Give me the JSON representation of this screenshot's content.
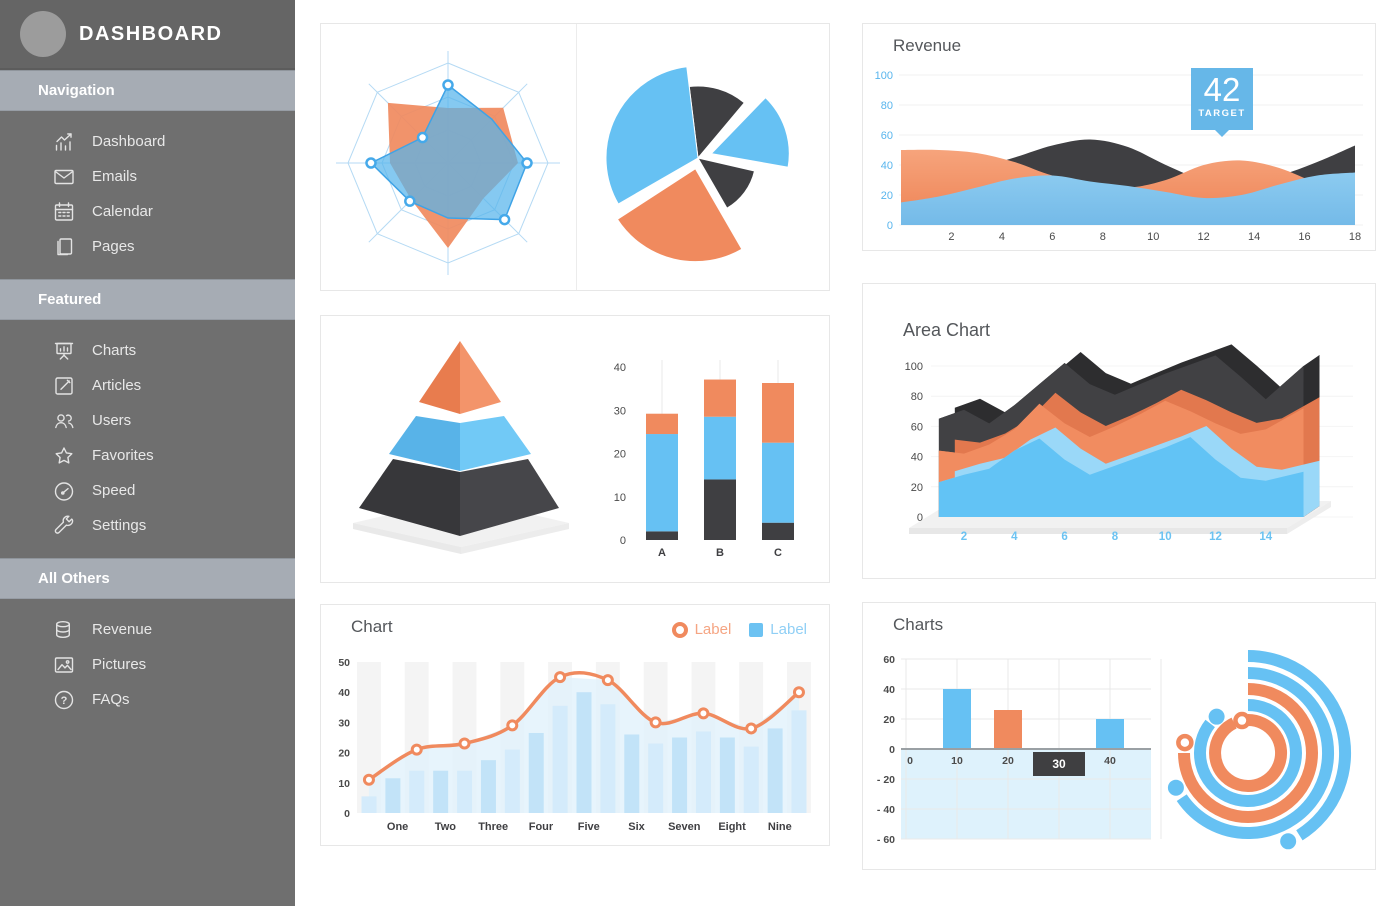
{
  "sidebar": {
    "title": "DASHBOARD",
    "sections": [
      {
        "label": "Navigation",
        "items": [
          {
            "label": "Dashboard",
            "icon": "bar-chart-icon"
          },
          {
            "label": "Emails",
            "icon": "envelope-icon"
          },
          {
            "label": "Calendar",
            "icon": "calendar-icon"
          },
          {
            "label": "Pages",
            "icon": "pages-icon"
          }
        ]
      },
      {
        "label": "Featured",
        "items": [
          {
            "label": "Charts",
            "icon": "presentation-chart-icon"
          },
          {
            "label": "Articles",
            "icon": "edit-icon"
          },
          {
            "label": "Users",
            "icon": "users-icon"
          },
          {
            "label": "Favorites",
            "icon": "star-icon"
          },
          {
            "label": "Speed",
            "icon": "gauge-icon"
          },
          {
            "label": "Settings",
            "icon": "wrench-icon"
          }
        ]
      },
      {
        "label": "All Others",
        "items": [
          {
            "label": "Revenue",
            "icon": "coins-icon"
          },
          {
            "label": "Pictures",
            "icon": "picture-icon"
          },
          {
            "label": "FAQs",
            "icon": "question-circle-icon"
          }
        ]
      }
    ]
  },
  "palette": {
    "blue": "#66c1f3",
    "blue_muted": "#7cc0ea",
    "orange": "#f08a5e",
    "orange_light": "#f6a47c",
    "dark": "#3f3f42",
    "dark_roof": "#2d2d2f",
    "blue_roof": "#9ad8f8",
    "orange_roof": "#e2784e",
    "bar_light_blue_a": "#d4ebfb",
    "bar_light_blue_b": "#c2e3f8",
    "stripe": "#f4f4f4",
    "negative_region": "#def2fc",
    "grid": "#efefef",
    "axis_text": "#4b4b4b",
    "blue_text": "#58b5ed",
    "badge_blue": "#66b7e8"
  },
  "panels": {
    "revenue": {
      "title": "Revenue",
      "target_value": "42",
      "target_label": "TARGET"
    },
    "area": {
      "title": "Area Chart"
    },
    "combo": {
      "title": "Chart",
      "legend": [
        {
          "label": "Label",
          "color": "orange",
          "shape": "ring"
        },
        {
          "label": "Label",
          "color": "blue",
          "shape": "square"
        }
      ]
    },
    "charts": {
      "title": "Charts"
    }
  },
  "chart_data": [
    {
      "id": "radar",
      "type": "radar",
      "axes": 8,
      "rings": 3,
      "max": 100,
      "series": [
        {
          "name": "orange",
          "color": "orange",
          "values": [
            55,
            78,
            70,
            50,
            85,
            52,
            58,
            85
          ]
        },
        {
          "name": "blue",
          "color": "blue",
          "values": [
            78,
            62,
            79,
            80,
            55,
            54,
            77,
            36
          ],
          "markers": [
            0,
            2,
            3,
            5,
            6,
            7
          ]
        }
      ]
    },
    {
      "id": "pie",
      "type": "pie",
      "slices": [
        {
          "color": "dark",
          "start": -7,
          "end": 40,
          "r": 72,
          "explode": 0
        },
        {
          "color": "blue",
          "start": 44,
          "end": 100,
          "r": 78,
          "explode": 14
        },
        {
          "color": "dark",
          "start": 103,
          "end": 150,
          "r": 58,
          "explode": 0
        },
        {
          "color": "orange",
          "start": 150,
          "end": 237,
          "r": 93,
          "explode": 11
        },
        {
          "color": "blue",
          "start": 240,
          "end": 353,
          "r": 92,
          "explode": 0
        }
      ]
    },
    {
      "id": "revenue",
      "type": "area",
      "x": [
        0,
        1.5,
        3,
        4.5,
        6,
        7.5,
        9,
        10.5,
        12,
        13.5,
        15,
        16.5,
        18
      ],
      "series": [
        {
          "name": "dark",
          "color": "dark",
          "values": [
            30,
            33,
            38,
            45,
            53,
            57,
            52,
            40,
            30,
            28,
            33,
            42,
            53
          ]
        },
        {
          "name": "orange",
          "color": "orange",
          "values": [
            50,
            50,
            48,
            42,
            33,
            28,
            25,
            30,
            40,
            43,
            38,
            28,
            22
          ]
        },
        {
          "name": "blue",
          "color": "blue_muted",
          "values": [
            15,
            19,
            25,
            31,
            33,
            29,
            26,
            22,
            18,
            20,
            27,
            33,
            35
          ]
        }
      ],
      "yticks": [
        0,
        20,
        40,
        60,
        80,
        100
      ],
      "xticks": [
        2,
        4,
        6,
        8,
        10,
        12,
        14,
        16,
        18
      ],
      "target": 42
    },
    {
      "id": "pyramid",
      "type": "pyramid",
      "tiers": [
        {
          "name": "top",
          "color": "orange"
        },
        {
          "name": "middle",
          "color": "blue"
        },
        {
          "name": "bottom",
          "color": "dark"
        }
      ]
    },
    {
      "id": "stacked-bars",
      "type": "bar",
      "stacked": true,
      "categories": [
        "A",
        "B",
        "C"
      ],
      "series": [
        {
          "name": "dark",
          "color": "dark",
          "values": [
            2,
            14,
            4
          ]
        },
        {
          "name": "blue",
          "color": "blue",
          "values": [
            22.5,
            14.5,
            18.5
          ]
        },
        {
          "name": "orange",
          "color": "orange",
          "values": [
            4.7,
            8.6,
            13.8
          ]
        }
      ],
      "yticks": [
        0,
        10,
        20,
        30,
        40
      ]
    },
    {
      "id": "combo",
      "type": "bar+line",
      "categories": [
        "One",
        "Two",
        "Three",
        "Four",
        "Five",
        "Six",
        "Seven",
        "Eight",
        "Nine"
      ],
      "bar_values": [
        5.5,
        11.5,
        14,
        14,
        14,
        17.5,
        21,
        26.5,
        35.5,
        40,
        36,
        26,
        23,
        25,
        27,
        25,
        22,
        28,
        34
      ],
      "line": {
        "slots": [
          0,
          2,
          4,
          6,
          8,
          10,
          12,
          14,
          16,
          18
        ],
        "values": [
          11,
          21,
          23,
          29,
          45,
          44,
          30,
          33,
          28,
          40
        ]
      },
      "yticks": [
        0,
        10,
        20,
        30,
        40,
        50
      ]
    },
    {
      "id": "pm-bars",
      "type": "bar",
      "bars": [
        {
          "x": 10,
          "value": 40,
          "color": "blue"
        },
        {
          "x": 20,
          "value": 26,
          "color": "orange"
        },
        {
          "x": 40,
          "value": 20,
          "color": "blue"
        }
      ],
      "xticks": [
        "0",
        "10",
        "20",
        "30",
        "40"
      ],
      "xtick_values": [
        0,
        10,
        20,
        30,
        40
      ],
      "highlighted_xtick": "30",
      "ytick_labels": [
        "60",
        "40",
        "20",
        "0",
        "- 20",
        "- 40",
        "- 60"
      ],
      "ytick_values": [
        60,
        40,
        20,
        0,
        -20,
        -40,
        -60
      ]
    },
    {
      "id": "radial",
      "type": "radial",
      "arcs": [
        {
          "color": "orange",
          "radius": 33,
          "sweep": 335,
          "end": "ring"
        },
        {
          "color": "blue",
          "radius": 48,
          "sweep": 308,
          "end": "dot"
        },
        {
          "color": "orange",
          "radius": 64,
          "sweep": 270,
          "end": "ring"
        },
        {
          "color": "blue",
          "radius": 80,
          "sweep": 236,
          "end": "dot"
        },
        {
          "color": "blue",
          "radius": 97,
          "sweep": 148,
          "end": "dot"
        }
      ]
    },
    {
      "id": "area3d",
      "type": "area",
      "x": [
        1,
        2,
        3,
        4,
        5,
        6,
        7,
        8,
        9,
        10,
        11,
        12,
        13,
        14,
        15.5
      ],
      "series": [
        {
          "name": "dark",
          "color": "dark",
          "values": [
            65,
            71,
            62,
            74,
            88,
            102,
            88,
            81,
            88,
            95,
            101,
            107,
            93,
            78,
            100
          ]
        },
        {
          "name": "orange",
          "color": "orange",
          "values": [
            44,
            42,
            48,
            58,
            75,
            62,
            53,
            60,
            68,
            77,
            70,
            62,
            55,
            58,
            72
          ]
        },
        {
          "name": "blue",
          "color": "blue",
          "values": [
            23,
            28,
            32,
            44,
            52,
            38,
            28,
            34,
            40,
            46,
            53,
            38,
            26,
            24,
            30
          ]
        }
      ],
      "yticks": [
        0,
        20,
        40,
        60,
        80,
        100
      ],
      "xticks": [
        2,
        4,
        6,
        8,
        10,
        12,
        14
      ]
    }
  ]
}
